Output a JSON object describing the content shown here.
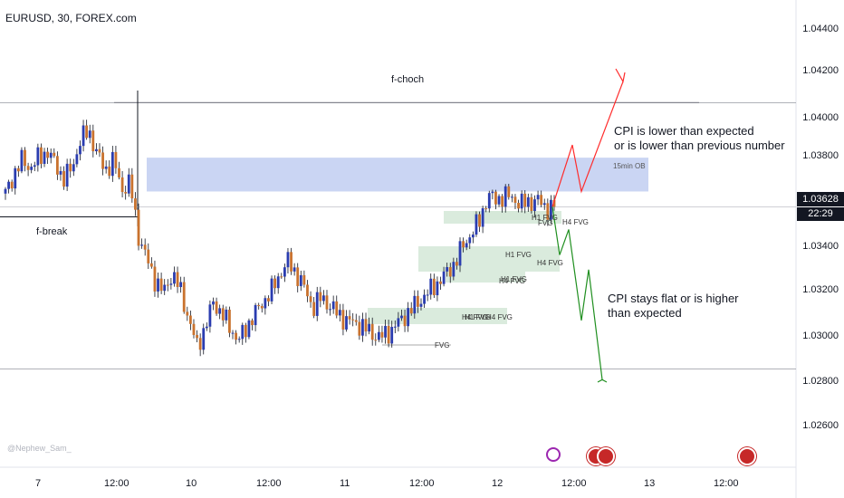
{
  "header": {
    "symbol": "EURUSD, 30, FOREX.com"
  },
  "watermark": "@Nephew_Sam_",
  "price_axis": {
    "ticks": [
      "1.04400",
      "1.04200",
      "1.04000",
      "1.03800",
      "1.03628",
      "1.03400",
      "1.03200",
      "1.03000",
      "1.02800",
      "1.02600"
    ],
    "current_price": "1.03628",
    "countdown": "22:29"
  },
  "time_axis": {
    "ticks": [
      "7",
      "12:00",
      "10",
      "12:00",
      "11",
      "12:00",
      "12",
      "12:00",
      "13",
      "12:00"
    ]
  },
  "annotations": {
    "fchoch": "f-choch",
    "fbreak": "f-break",
    "ob": "15min OB",
    "bull_l1": "CPI is lower than expected",
    "bull_l2": "or is lower than previous number",
    "bear_l1": "CPI stays flat or is higher",
    "bear_l2": "than expected",
    "fvg": [
      "H1 FVG",
      "H4 FVG",
      "H1 FVG",
      "H4 FVG",
      "H1 FVG",
      "H4 FVG",
      "H4 FVG",
      "H1 FVG",
      "H4 FVG",
      "FVG",
      "FVG"
    ]
  },
  "colors": {
    "bull_candle": "#2a3cb0",
    "bear_candle": "#c9722e",
    "zone_ob": "#c4d0f2",
    "zone_fvg": "#d4e8d7",
    "bull_arrow": "#ff2b2b",
    "bear_arrow": "#1f8f1f",
    "price_box": "#131722"
  },
  "chart_data": {
    "type": "candlestick",
    "title": "EURUSD, 30, FOREX.com",
    "x_labels": [
      "7",
      "12:00",
      "10",
      "12:00",
      "11",
      "12:00",
      "12",
      "12:00",
      "13",
      "12:00"
    ],
    "ylim": [
      1.0255,
      1.0452
    ],
    "close_path": [
      1.0369,
      1.0378,
      1.0385,
      1.0381,
      1.0386,
      1.0389,
      1.0383,
      1.0376,
      1.0381,
      1.0394,
      1.0399,
      1.0388,
      1.038,
      1.0385,
      1.0371,
      1.0374,
      1.0349,
      1.0338,
      1.0328,
      1.0322,
      1.0331,
      1.0324,
      1.031,
      1.0297,
      1.0305,
      1.0318,
      1.0312,
      1.0306,
      1.0299,
      1.0306,
      1.0312,
      1.0318,
      1.0323,
      1.0331,
      1.0337,
      1.0331,
      1.0324,
      1.0315,
      1.032,
      1.0316,
      1.0312,
      1.0309,
      1.0308,
      1.0306,
      1.0303,
      1.0301,
      1.0303,
      1.0307,
      1.0311,
      1.0315,
      1.0319,
      1.0323,
      1.0327,
      1.0331,
      1.0336,
      1.0344,
      1.035,
      1.0356,
      1.0368,
      1.0366,
      1.0368,
      1.0367,
      1.0364,
      1.0365,
      1.0366,
      1.0362,
      1.0363
    ],
    "levels": {
      "f_choch": 1.0412,
      "f_break": 1.0358,
      "support": 1.0286,
      "current": 1.03628
    },
    "zones": [
      {
        "name": "15min OB",
        "from": 1.037,
        "to": 1.0386
      }
    ],
    "projections": [
      {
        "name": "CPI is lower than expected",
        "path": [
          1.03628,
          1.0392,
          1.037,
          1.0422
        ]
      },
      {
        "name": "CPI stays flat or is higher",
        "path": [
          1.03628,
          1.034,
          1.0352,
          1.0309,
          1.0333,
          1.0281
        ]
      }
    ]
  }
}
